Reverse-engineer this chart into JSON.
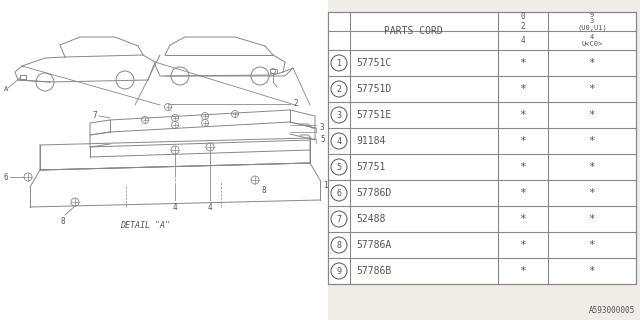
{
  "bg_color": "#f0ede8",
  "parts_table": {
    "col1_label": "PARTS CORD",
    "col2_label": "0\n2",
    "col3_label_top": "9\n3\n(U0,U1)",
    "col3_label_bot": "4\nU<C0>",
    "rows": [
      {
        "num": 1,
        "part": "57751C",
        "c2": "*",
        "c3": "*"
      },
      {
        "num": 2,
        "part": "57751D",
        "c2": "*",
        "c3": "*"
      },
      {
        "num": 3,
        "part": "57751E",
        "c2": "*",
        "c3": "*"
      },
      {
        "num": 4,
        "part": "91184",
        "c2": "*",
        "c3": "*"
      },
      {
        "num": 5,
        "part": "57751",
        "c2": "*",
        "c3": "*"
      },
      {
        "num": 6,
        "part": "57786D",
        "c2": "*",
        "c3": "*"
      },
      {
        "num": 7,
        "part": "52488",
        "c2": "*",
        "c3": "*"
      },
      {
        "num": 8,
        "part": "57786A",
        "c2": "*",
        "c3": "*"
      },
      {
        "num": 9,
        "part": "57786B",
        "c2": "*",
        "c3": "*"
      }
    ]
  },
  "ref_code": "A593000005",
  "line_color": "#888888",
  "text_color": "#555555",
  "white_bg": "#ffffff"
}
